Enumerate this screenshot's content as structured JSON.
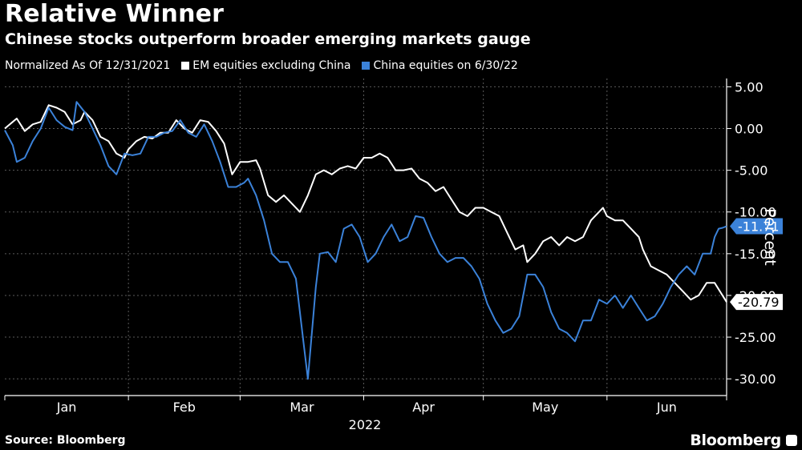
{
  "header": {
    "title": "Relative Winner",
    "subtitle": "Chinese stocks outperform broader emerging markets gauge"
  },
  "legend": {
    "note": "Normalized As Of 12/31/2021",
    "items": [
      {
        "label": "EM equities excluding China",
        "color": "#ffffff"
      },
      {
        "label": "China equities on 6/30/22",
        "color": "#3b82d9"
      }
    ]
  },
  "footer": {
    "source": "Source: Bloomberg",
    "brand": "Bloomberg"
  },
  "chart_data": {
    "type": "line",
    "title": "Relative Winner",
    "subtitle": "Chinese stocks outperform broader emerging markets gauge",
    "xlabel": "2022",
    "ylabel": "Percent",
    "x_range": [
      0,
      181
    ],
    "ylim": [
      -32,
      6
    ],
    "y_ticks": [
      5,
      0,
      -5,
      -10,
      -15,
      -20,
      -25,
      -30
    ],
    "y_tick_labels": [
      "5.00",
      "0.00",
      "-5.00",
      "-10.00",
      "-15.00",
      "-20.00",
      "-25.00",
      "-30.00"
    ],
    "x_month_labels": [
      {
        "label": "Jan",
        "day": 15.5
      },
      {
        "label": "Feb",
        "day": 45
      },
      {
        "label": "Mar",
        "day": 74.5
      },
      {
        "label": "Apr",
        "day": 105
      },
      {
        "label": "May",
        "day": 135.5
      },
      {
        "label": "Jun",
        "day": 166
      }
    ],
    "x_gridlines_days": [
      31,
      59,
      90,
      120,
      151,
      181
    ],
    "grid": true,
    "series": [
      {
        "name": "EM equities excluding China",
        "color": "#ffffff",
        "end_label": "-20.79",
        "points": [
          [
            0,
            0
          ],
          [
            2,
            0.8
          ],
          [
            3,
            1.2
          ],
          [
            5,
            -0.3
          ],
          [
            7,
            0.5
          ],
          [
            9,
            0.8
          ],
          [
            11,
            2.8
          ],
          [
            13,
            2.5
          ],
          [
            15,
            2.0
          ],
          [
            17,
            0.5
          ],
          [
            19,
            1.0
          ],
          [
            20,
            2.0
          ],
          [
            22,
            1.0
          ],
          [
            24,
            -1.0
          ],
          [
            26,
            -1.5
          ],
          [
            28,
            -3.0
          ],
          [
            30,
            -3.5
          ],
          [
            31,
            -2.5
          ],
          [
            33,
            -1.5
          ],
          [
            35,
            -1.0
          ],
          [
            37,
            -1.2
          ],
          [
            39,
            -0.5
          ],
          [
            41,
            -0.5
          ],
          [
            43,
            1.0
          ],
          [
            45,
            0
          ],
          [
            47,
            -0.5
          ],
          [
            49,
            1.0
          ],
          [
            51,
            0.8
          ],
          [
            53,
            -0.3
          ],
          [
            55,
            -1.8
          ],
          [
            57,
            -5.5
          ],
          [
            59,
            -4.0
          ],
          [
            61,
            -4.0
          ],
          [
            63,
            -3.8
          ],
          [
            64,
            -4.8
          ],
          [
            66,
            -8.0
          ],
          [
            68,
            -8.8
          ],
          [
            70,
            -8.0
          ],
          [
            72,
            -9.0
          ],
          [
            74,
            -10.0
          ],
          [
            76,
            -8.0
          ],
          [
            78,
            -5.5
          ],
          [
            80,
            -5.0
          ],
          [
            82,
            -5.5
          ],
          [
            84,
            -4.8
          ],
          [
            86,
            -4.5
          ],
          [
            88,
            -4.8
          ],
          [
            90,
            -3.5
          ],
          [
            92,
            -3.5
          ],
          [
            94,
            -3.0
          ],
          [
            96,
            -3.5
          ],
          [
            98,
            -5.0
          ],
          [
            100,
            -5.0
          ],
          [
            102,
            -4.8
          ],
          [
            104,
            -6.0
          ],
          [
            106,
            -6.5
          ],
          [
            108,
            -7.5
          ],
          [
            110,
            -7.0
          ],
          [
            112,
            -8.5
          ],
          [
            114,
            -10.0
          ],
          [
            116,
            -10.5
          ],
          [
            118,
            -9.5
          ],
          [
            120,
            -9.5
          ],
          [
            122,
            -10.0
          ],
          [
            124,
            -10.5
          ],
          [
            126,
            -12.5
          ],
          [
            128,
            -14.5
          ],
          [
            130,
            -14.0
          ],
          [
            131,
            -16.0
          ],
          [
            133,
            -15.0
          ],
          [
            135,
            -13.5
          ],
          [
            137,
            -13.0
          ],
          [
            139,
            -14.0
          ],
          [
            141,
            -13.0
          ],
          [
            143,
            -13.5
          ],
          [
            145,
            -13.0
          ],
          [
            147,
            -11.0
          ],
          [
            149,
            -10.0
          ],
          [
            150,
            -9.5
          ],
          [
            151,
            -10.5
          ],
          [
            153,
            -11.0
          ],
          [
            155,
            -11.0
          ],
          [
            157,
            -12.0
          ],
          [
            159,
            -13.0
          ],
          [
            160,
            -14.5
          ],
          [
            162,
            -16.5
          ],
          [
            164,
            -17.0
          ],
          [
            166,
            -17.5
          ],
          [
            168,
            -18.5
          ],
          [
            170,
            -19.5
          ],
          [
            172,
            -20.5
          ],
          [
            174,
            -20.0
          ],
          [
            176,
            -18.5
          ],
          [
            178,
            -18.5
          ],
          [
            181,
            -20.79
          ]
        ]
      },
      {
        "name": "China equities on 6/30/22",
        "color": "#3b82d9",
        "end_label": "-11.71",
        "points": [
          [
            0,
            -0.2
          ],
          [
            2,
            -2.0
          ],
          [
            3,
            -4.0
          ],
          [
            5,
            -3.5
          ],
          [
            7,
            -1.5
          ],
          [
            9,
            0
          ],
          [
            11,
            2.5
          ],
          [
            13,
            1.0
          ],
          [
            15,
            0.2
          ],
          [
            17,
            -0.2
          ],
          [
            18,
            3.2
          ],
          [
            20,
            2.0
          ],
          [
            22,
            0
          ],
          [
            24,
            -2.0
          ],
          [
            26,
            -4.5
          ],
          [
            28,
            -5.5
          ],
          [
            30,
            -3.0
          ],
          [
            32,
            -3.2
          ],
          [
            34,
            -3.0
          ],
          [
            36,
            -1.0
          ],
          [
            38,
            -1.0
          ],
          [
            40,
            -0.5
          ],
          [
            42,
            -0.3
          ],
          [
            44,
            1.0
          ],
          [
            46,
            -0.5
          ],
          [
            48,
            -1.0
          ],
          [
            50,
            0.5
          ],
          [
            52,
            -1.5
          ],
          [
            54,
            -4.0
          ],
          [
            56,
            -7.0
          ],
          [
            58,
            -7.0
          ],
          [
            60,
            -6.5
          ],
          [
            61,
            -6.0
          ],
          [
            63,
            -8.0
          ],
          [
            65,
            -11.0
          ],
          [
            67,
            -15.0
          ],
          [
            69,
            -16.0
          ],
          [
            71,
            -16.0
          ],
          [
            73,
            -18.0
          ],
          [
            75,
            -26.0
          ],
          [
            76,
            -30.0
          ],
          [
            78,
            -19.0
          ],
          [
            79,
            -15.0
          ],
          [
            81,
            -14.8
          ],
          [
            83,
            -16.0
          ],
          [
            85,
            -12.0
          ],
          [
            87,
            -11.5
          ],
          [
            89,
            -13.0
          ],
          [
            91,
            -16.0
          ],
          [
            93,
            -15.0
          ],
          [
            95,
            -13.0
          ],
          [
            97,
            -11.5
          ],
          [
            99,
            -13.5
          ],
          [
            101,
            -13.0
          ],
          [
            103,
            -10.5
          ],
          [
            105,
            -10.7
          ],
          [
            107,
            -13.0
          ],
          [
            109,
            -15.0
          ],
          [
            111,
            -16.0
          ],
          [
            113,
            -15.5
          ],
          [
            115,
            -15.5
          ],
          [
            117,
            -16.5
          ],
          [
            119,
            -18.0
          ],
          [
            121,
            -21.0
          ],
          [
            123,
            -23.0
          ],
          [
            125,
            -24.5
          ],
          [
            127,
            -24.0
          ],
          [
            129,
            -22.5
          ],
          [
            131,
            -17.5
          ],
          [
            133,
            -17.5
          ],
          [
            135,
            -19.0
          ],
          [
            137,
            -22.0
          ],
          [
            139,
            -24.0
          ],
          [
            141,
            -24.5
          ],
          [
            143,
            -25.5
          ],
          [
            145,
            -23.0
          ],
          [
            147,
            -23.0
          ],
          [
            149,
            -20.5
          ],
          [
            151,
            -21.0
          ],
          [
            153,
            -20.0
          ],
          [
            155,
            -21.5
          ],
          [
            157,
            -20.0
          ],
          [
            159,
            -21.5
          ],
          [
            161,
            -23.0
          ],
          [
            163,
            -22.5
          ],
          [
            165,
            -21.0
          ],
          [
            167,
            -19.0
          ],
          [
            169,
            -17.5
          ],
          [
            171,
            -16.5
          ],
          [
            173,
            -17.5
          ],
          [
            175,
            -15.0
          ],
          [
            177,
            -15.0
          ],
          [
            178,
            -13.0
          ],
          [
            179,
            -12.0
          ],
          [
            180,
            -11.9
          ],
          [
            181,
            -11.71
          ]
        ]
      }
    ]
  }
}
